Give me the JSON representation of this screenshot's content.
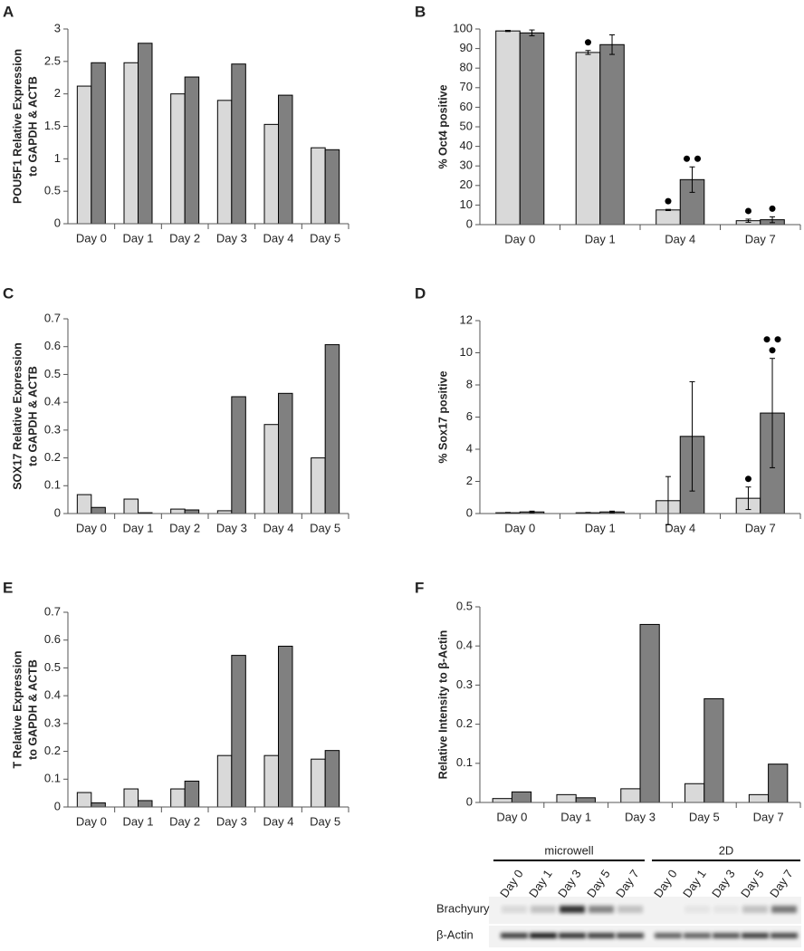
{
  "chart_data": [
    {
      "type": "bar",
      "label": "A",
      "ylabel": [
        "POU5F1 Relative Expression",
        "to GAPDH & ACTB"
      ],
      "categories": [
        "Day 0",
        "Day 1",
        "Day 2",
        "Day 3",
        "Day 4",
        "Day 5"
      ],
      "series": [
        {
          "color": "#d9d9d9",
          "values": [
            2.12,
            2.48,
            2.0,
            1.9,
            1.53,
            1.17
          ]
        },
        {
          "color": "#808080",
          "values": [
            2.48,
            2.78,
            2.26,
            2.46,
            1.98,
            1.14
          ]
        }
      ],
      "ylim": [
        0,
        3
      ],
      "yticks": [
        0,
        0.5,
        1,
        1.5,
        2,
        2.5,
        3
      ]
    },
    {
      "type": "bar",
      "label": "B",
      "ylabel": [
        "% Oct4 positive"
      ],
      "categories": [
        "Day 0",
        "Day 1",
        "Day 4",
        "Day 7"
      ],
      "series": [
        {
          "color": "#d9d9d9",
          "values": [
            99,
            88,
            7.5,
            2
          ],
          "errors": [
            0.3,
            1,
            0.3,
            0.8
          ],
          "significance_dots": [
            0,
            1,
            1,
            1
          ]
        },
        {
          "color": "#808080",
          "values": [
            98,
            92,
            23,
            2.5
          ],
          "errors": [
            1.5,
            5,
            6.5,
            1.5
          ],
          "significance_dots": [
            0,
            0,
            2,
            1
          ]
        }
      ],
      "ylim": [
        0,
        100
      ],
      "yticks": [
        0,
        10,
        20,
        30,
        40,
        50,
        60,
        70,
        80,
        90,
        100
      ]
    },
    {
      "type": "bar",
      "label": "C",
      "ylabel": [
        "SOX17 Relative Expression",
        "to GAPDH & ACTB"
      ],
      "categories": [
        "Day 0",
        "Day 1",
        "Day 2",
        "Day 3",
        "Day 4",
        "Day 5"
      ],
      "series": [
        {
          "color": "#d9d9d9",
          "values": [
            0.068,
            0.052,
            0.016,
            0.01,
            0.32,
            0.2
          ]
        },
        {
          "color": "#808080",
          "values": [
            0.022,
            0.003,
            0.013,
            0.42,
            0.432,
            0.607
          ]
        }
      ],
      "ylim": [
        0,
        0.7
      ],
      "yticks": [
        0,
        0.1,
        0.2,
        0.3,
        0.4,
        0.5,
        0.6,
        0.7
      ]
    },
    {
      "type": "bar",
      "label": "D",
      "ylabel": [
        "% Sox17 positive"
      ],
      "categories": [
        "Day 0",
        "Day 1",
        "Day 4",
        "Day 7"
      ],
      "series": [
        {
          "color": "#d9d9d9",
          "values": [
            0.05,
            0.05,
            0.8,
            0.95
          ],
          "errors": [
            0.02,
            0.02,
            1.5,
            0.7
          ],
          "significance_dots": [
            0,
            0,
            0,
            1
          ]
        },
        {
          "color": "#808080",
          "values": [
            0.1,
            0.1,
            4.8,
            6.25
          ],
          "errors": [
            0.05,
            0.05,
            3.4,
            3.4
          ],
          "significance_dots": [
            0,
            0,
            0,
            3
          ]
        }
      ],
      "ylim": [
        0,
        12
      ],
      "yticks": [
        0,
        2,
        4,
        6,
        8,
        10,
        12
      ]
    },
    {
      "type": "bar",
      "label": "E",
      "ylabel": [
        "T Relative Expression",
        "to GAPDH & ACTB"
      ],
      "categories": [
        "Day 0",
        "Day 1",
        "Day 2",
        "Day 3",
        "Day 4",
        "Day 5"
      ],
      "series": [
        {
          "color": "#d9d9d9",
          "values": [
            0.052,
            0.065,
            0.065,
            0.185,
            0.185,
            0.172
          ]
        },
        {
          "color": "#808080",
          "values": [
            0.015,
            0.023,
            0.093,
            0.545,
            0.578,
            0.203
          ]
        }
      ],
      "ylim": [
        0,
        0.7
      ],
      "yticks": [
        0,
        0.1,
        0.2,
        0.3,
        0.4,
        0.5,
        0.6,
        0.7
      ]
    },
    {
      "type": "bar",
      "label": "F",
      "ylabel": [
        "Relative Intensity to β-Actin"
      ],
      "categories": [
        "Day 0",
        "Day 1",
        "Day 3",
        "Day 5",
        "Day 7"
      ],
      "series": [
        {
          "color": "#d9d9d9",
          "values": [
            0.01,
            0.02,
            0.035,
            0.048,
            0.02
          ]
        },
        {
          "color": "#808080",
          "values": [
            0.027,
            0.012,
            0.455,
            0.265,
            0.098
          ]
        }
      ],
      "ylim": [
        0,
        0.5
      ],
      "yticks": [
        0,
        0.1,
        0.2,
        0.3,
        0.4,
        0.5
      ]
    }
  ],
  "blot": {
    "groups": [
      "microwell",
      "2D"
    ],
    "lanes": [
      "Day 0",
      "Day 1",
      "Day 3",
      "Day 5",
      "Day 7"
    ],
    "rows": [
      "Brachyury",
      "β-Actin"
    ]
  }
}
